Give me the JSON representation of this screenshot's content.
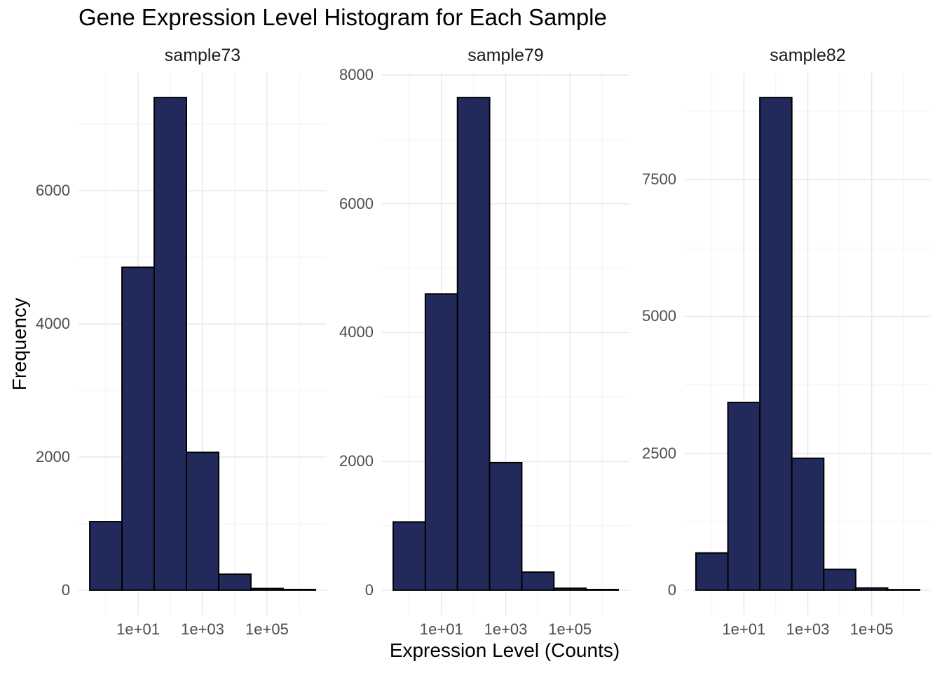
{
  "title": "Gene Expression Level Histogram for Each Sample",
  "axes": {
    "x_title": "Expression Level (Counts)",
    "y_title": "Frequency"
  },
  "x_axis": {
    "scale": "log10",
    "tick_values": [
      10,
      1000,
      100000
    ],
    "tick_labels": [
      "1e+01",
      "1e+03",
      "1e+05"
    ],
    "minor_tick_values": [
      1,
      100,
      10000,
      1000000
    ],
    "bin_centers": [
      1,
      10,
      100,
      1000,
      10000,
      100000,
      1000000
    ],
    "bin_width_decades": 1
  },
  "colors": {
    "background": "#FFFFFF",
    "bar_fill": "#222A5C",
    "bar_stroke": "#000000",
    "grid_major": "#E7E7E7",
    "grid_minor": "#F2F2F2",
    "tick_label": "#4D4D4D",
    "text": "#000000",
    "strip_text": "#1A1A1A"
  },
  "chart_data": [
    {
      "type": "bar",
      "title": "sample73",
      "x_scale": "log10",
      "bin_centers": [
        1,
        10,
        100,
        1000,
        10000,
        100000,
        1000000
      ],
      "values": [
        1030,
        4850,
        7400,
        2070,
        240,
        25,
        10
      ],
      "y_tick_values": [
        0,
        2000,
        4000,
        6000
      ],
      "y_tick_labels": [
        "0",
        "2000",
        "4000",
        "6000"
      ],
      "y_minor_tick_values": [
        1000,
        3000,
        5000,
        7000
      ]
    },
    {
      "type": "bar",
      "title": "sample79",
      "x_scale": "log10",
      "bin_centers": [
        1,
        10,
        100,
        1000,
        10000,
        100000,
        1000000
      ],
      "values": [
        1060,
        4600,
        7650,
        1980,
        280,
        30,
        10
      ],
      "y_tick_values": [
        0,
        2000,
        4000,
        6000,
        8000
      ],
      "y_tick_labels": [
        "0",
        "2000",
        "4000",
        "6000",
        "8000"
      ],
      "y_minor_tick_values": [
        1000,
        3000,
        5000,
        7000
      ]
    },
    {
      "type": "bar",
      "title": "sample82",
      "x_scale": "log10",
      "bin_centers": [
        1,
        10,
        100,
        1000,
        10000,
        100000,
        1000000
      ],
      "values": [
        680,
        3430,
        9000,
        2410,
        380,
        40,
        10
      ],
      "y_tick_values": [
        0,
        2500,
        5000,
        7500
      ],
      "y_tick_labels": [
        "0",
        "2500",
        "5000",
        "7500"
      ],
      "y_minor_tick_values": [
        1250,
        3750,
        6250,
        8750
      ]
    }
  ]
}
